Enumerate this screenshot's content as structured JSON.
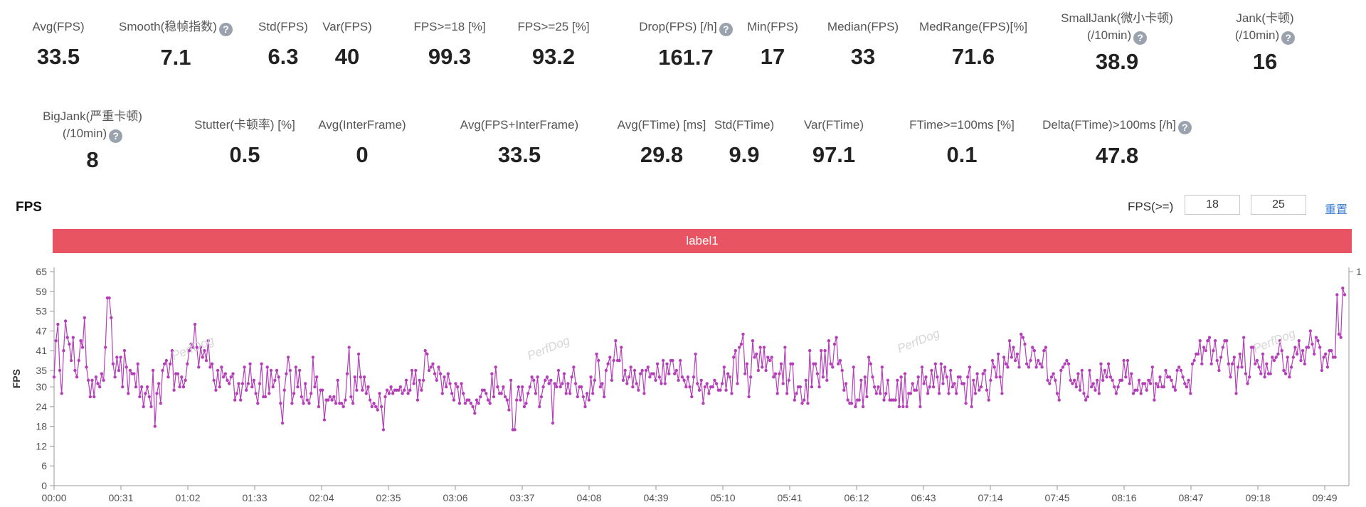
{
  "metrics_row1": [
    {
      "label": "Avg(FPS)",
      "value": "33.5",
      "help": false
    },
    {
      "label": "Smooth(稳帧指数)",
      "value": "7.1",
      "help": true
    },
    {
      "label": "Std(FPS)",
      "value": "6.3",
      "help": false
    },
    {
      "label": "Var(FPS)",
      "value": "40",
      "help": false
    },
    {
      "label": "FPS>=18 [%]",
      "value": "99.3",
      "help": false
    },
    {
      "label": "FPS>=25 [%]",
      "value": "93.2",
      "help": false
    },
    {
      "label": "Drop(FPS) [/h]",
      "value": "161.7",
      "help": true
    },
    {
      "label": "Min(FPS)",
      "value": "17",
      "help": false
    },
    {
      "label": "Median(FPS)",
      "value": "33",
      "help": false
    },
    {
      "label": "MedRange(FPS)[%]",
      "value": "71.6",
      "help": false
    },
    {
      "label": "SmallJank(微小卡顿)",
      "label2": "(/10min)",
      "value": "38.9",
      "help": true
    },
    {
      "label": "Jank(卡顿)",
      "label2": "(/10min)",
      "value": "16",
      "help": true
    }
  ],
  "metrics_row2": [
    {
      "label": "BigJank(严重卡顿)",
      "label2": "(/10min)",
      "value": "8",
      "help": true
    },
    {
      "label": "Stutter(卡顿率) [%]",
      "value": "0.5",
      "help": false
    },
    {
      "label": "Avg(InterFrame)",
      "value": "0",
      "help": false
    },
    {
      "label": "Avg(FPS+InterFrame)",
      "value": "33.5",
      "help": false
    },
    {
      "label": "Avg(FTime) [ms]",
      "value": "29.8",
      "help": false
    },
    {
      "label": "Std(FTime)",
      "value": "9.9",
      "help": false
    },
    {
      "label": "Var(FTime)",
      "value": "97.1",
      "help": false
    },
    {
      "label": "FTime>=100ms [%]",
      "value": "0.1",
      "help": false
    },
    {
      "label": "Delta(FTime)>100ms [/h]",
      "value": "47.8",
      "help": true
    }
  ],
  "help_glyph": "?",
  "chart_header": {
    "title": "FPS",
    "threshold_label": "FPS(>=)",
    "threshold_low": "18",
    "threshold_high": "25",
    "reset_label": "重置"
  },
  "label_bar": {
    "text": "label1",
    "color": "#e95463"
  },
  "watermark": "PerfDog",
  "chart_data": {
    "type": "line",
    "title": "",
    "xlabel": "",
    "ylabel": "FPS",
    "ylim": [
      0,
      65
    ],
    "yticks": [
      0,
      6,
      12,
      18,
      24,
      30,
      35,
      41,
      47,
      53,
      59,
      65
    ],
    "right_axis_label": "1",
    "x_ticks": [
      "00:00",
      "00:31",
      "01:02",
      "01:33",
      "02:04",
      "02:35",
      "03:06",
      "03:37",
      "04:08",
      "04:39",
      "05:10",
      "05:41",
      "06:12",
      "06:43",
      "07:14",
      "07:45",
      "08:16",
      "08:47",
      "09:18",
      "09:49"
    ],
    "series": [
      {
        "name": "",
        "color": "#b43fb8",
        "values": [
          33,
          44,
          49,
          35,
          28,
          41,
          50,
          45,
          43,
          38,
          45,
          35,
          33,
          38,
          44,
          42,
          51,
          36,
          32,
          27,
          32,
          27,
          33,
          31,
          30,
          34,
          32,
          42,
          57,
          57,
          51,
          37,
          33,
          39,
          35,
          39,
          30,
          41,
          36,
          28,
          35,
          34,
          34,
          30,
          37,
          27,
          30,
          24,
          28,
          30,
          27,
          24,
          35,
          18,
          28,
          31,
          25,
          35,
          37,
          38,
          33,
          37,
          41,
          29,
          34,
          34,
          30,
          33,
          30,
          32,
          37,
          41,
          43,
          42,
          49,
          42,
          36,
          42,
          39,
          41,
          38,
          44,
          36,
          37,
          32,
          29,
          35,
          30,
          36,
          33,
          34,
          32,
          31,
          33,
          34,
          26,
          28,
          31,
          26,
          31,
          36,
          29,
          31,
          37,
          30,
          32,
          28,
          25,
          31,
          37,
          27,
          27,
          36,
          28,
          35,
          30,
          32,
          35,
          33,
          25,
          19,
          29,
          34,
          39,
          35,
          25,
          28,
          36,
          30,
          35,
          27,
          25,
          31,
          26,
          25,
          28,
          39,
          30,
          33,
          24,
          29,
          29,
          20,
          26,
          26,
          27,
          26,
          27,
          25,
          32,
          25,
          25,
          24,
          26,
          34,
          42,
          27,
          25,
          33,
          29,
          40,
          33,
          29,
          33,
          28,
          30,
          26,
          24,
          25,
          24,
          23,
          28,
          24,
          17,
          27,
          29,
          28,
          30,
          28,
          29,
          29,
          29,
          30,
          28,
          29,
          32,
          28,
          29,
          35,
          31,
          35,
          26,
          32,
          29,
          32,
          41,
          40,
          35,
          36,
          37,
          34,
          32,
          36,
          34,
          28,
          33,
          30,
          34,
          31,
          28,
          26,
          31,
          30,
          25,
          31,
          28,
          25,
          26,
          26,
          25,
          24,
          22,
          26,
          25,
          27,
          29,
          29,
          28,
          26,
          25,
          34,
          27,
          36,
          30,
          28,
          28,
          30,
          27,
          26,
          23,
          32,
          17,
          17,
          26,
          30,
          26,
          30,
          24,
          25,
          28,
          30,
          33,
          32,
          28,
          33,
          24,
          27,
          30,
          32,
          33,
          31,
          32,
          19,
          31,
          30,
          35,
          30,
          31,
          34,
          28,
          31,
          28,
          33,
          36,
          31,
          27,
          30,
          30,
          27,
          24,
          28,
          26,
          33,
          28,
          32,
          40,
          38,
          30,
          31,
          27,
          35,
          37,
          39,
          32,
          38,
          44,
          38,
          38,
          42,
          32,
          35,
          31,
          33,
          36,
          30,
          35,
          31,
          29,
          34,
          35,
          28,
          35,
          36,
          33,
          34,
          34,
          32,
          37,
          33,
          31,
          38,
          31,
          37,
          34,
          38,
          38,
          34,
          35,
          32,
          38,
          33,
          32,
          30,
          33,
          30,
          27,
          33,
          40,
          31,
          29,
          32,
          25,
          30,
          31,
          28,
          30,
          30,
          32,
          31,
          29,
          29,
          31,
          36,
          29,
          34,
          33,
          28,
          39,
          41,
          31,
          42,
          43,
          46,
          34,
          37,
          27,
          33,
          44,
          39,
          40,
          35,
          42,
          36,
          42,
          35,
          39,
          38,
          39,
          33,
          34,
          28,
          34,
          37,
          31,
          42,
          28,
          32,
          37,
          37,
          26,
          28,
          30,
          30,
          25,
          26,
          32,
          25,
          41,
          30,
          37,
          37,
          34,
          30,
          41,
          33,
          41,
          32,
          44,
          37,
          36,
          43,
          45,
          37,
          38,
          35,
          29,
          31,
          26,
          25,
          25,
          36,
          24,
          26,
          26,
          32,
          24,
          33,
          27,
          39,
          37,
          33,
          30,
          28,
          30,
          28,
          36,
          26,
          28,
          32,
          26,
          26,
          26,
          26,
          32,
          24,
          33,
          24,
          34,
          24,
          28,
          28,
          31,
          29,
          29,
          33,
          24,
          36,
          31,
          33,
          28,
          30,
          35,
          30,
          37,
          33,
          28,
          37,
          31,
          36,
          33,
          28,
          35,
          30,
          31,
          28,
          33,
          33,
          31,
          31,
          25,
          33,
          36,
          24,
          32,
          28,
          34,
          29,
          30,
          34,
          35,
          29,
          26,
          32,
          38,
          36,
          33,
          40,
          33,
          28,
          39,
          37,
          36,
          44,
          39,
          42,
          38,
          40,
          36,
          46,
          45,
          43,
          37,
          36,
          38,
          42,
          41,
          36,
          38,
          37,
          36,
          41,
          42,
          32,
          31,
          33,
          34,
          32,
          28,
          26,
          35,
          36,
          37,
          38,
          37,
          32,
          31,
          32,
          30,
          34,
          29,
          35,
          28,
          26,
          27,
          35,
          30,
          31,
          29,
          32,
          28,
          37,
          32,
          35,
          33,
          37,
          33,
          32,
          30,
          28,
          30,
          32,
          32,
          38,
          33,
          38,
          31,
          34,
          28,
          29,
          29,
          32,
          28,
          31,
          31,
          29,
          32,
          31,
          36,
          26,
          31,
          30,
          33,
          30,
          30,
          35,
          33,
          33,
          32,
          30,
          29,
          35,
          36,
          35,
          33,
          31,
          30,
          32,
          28,
          37,
          38,
          40,
          40,
          44,
          37,
          42,
          41,
          44,
          45,
          37,
          41,
          44,
          38,
          35,
          39,
          42,
          44,
          44,
          37,
          33,
          37,
          39,
          28,
          36,
          40,
          36,
          45,
          34,
          31,
          33,
          42,
          42,
          37,
          38,
          36,
          34,
          40,
          33,
          37,
          34,
          34,
          39,
          38,
          39,
          40,
          44,
          41,
          35,
          34,
          39,
          33,
          36,
          39,
          42,
          40,
          44,
          38,
          41,
          37,
          42,
          42,
          47,
          43,
          40,
          45,
          44,
          42,
          35,
          39,
          40,
          36,
          41,
          41,
          39,
          39,
          58,
          46,
          45,
          60,
          58
        ]
      }
    ]
  }
}
